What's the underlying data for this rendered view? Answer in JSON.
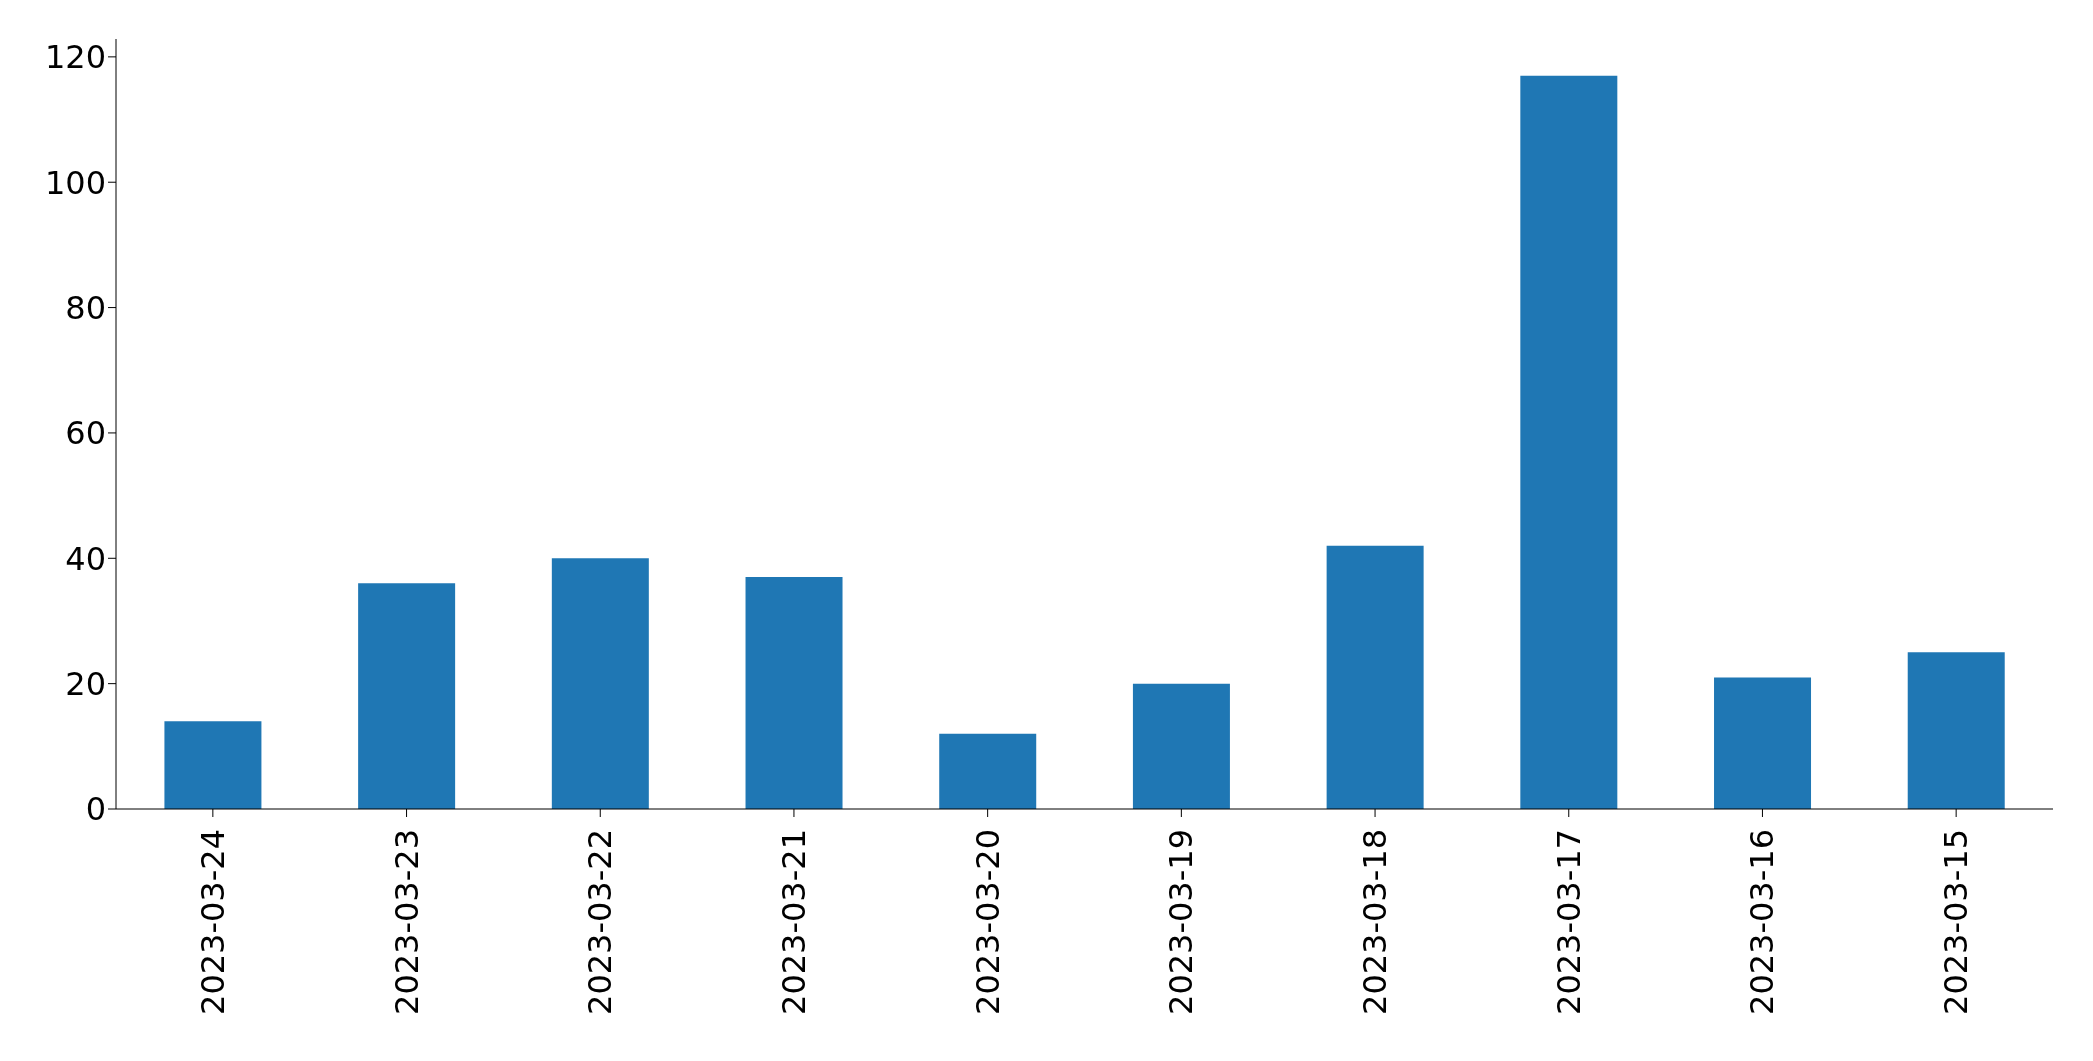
{
  "chart_data": {
    "type": "bar",
    "categories": [
      "2023-03-24",
      "2023-03-23",
      "2023-03-22",
      "2023-03-21",
      "2023-03-20",
      "2023-03-19",
      "2023-03-18",
      "2023-03-17",
      "2023-03-16",
      "2023-03-15"
    ],
    "values": [
      14,
      36,
      40,
      37,
      12,
      20,
      42,
      117,
      21,
      25
    ],
    "color": "#1f77b4",
    "ylim": [
      0,
      122.85
    ],
    "yticks": [
      0,
      20,
      40,
      60,
      80,
      100,
      120
    ],
    "grid": false,
    "legend": false
  }
}
